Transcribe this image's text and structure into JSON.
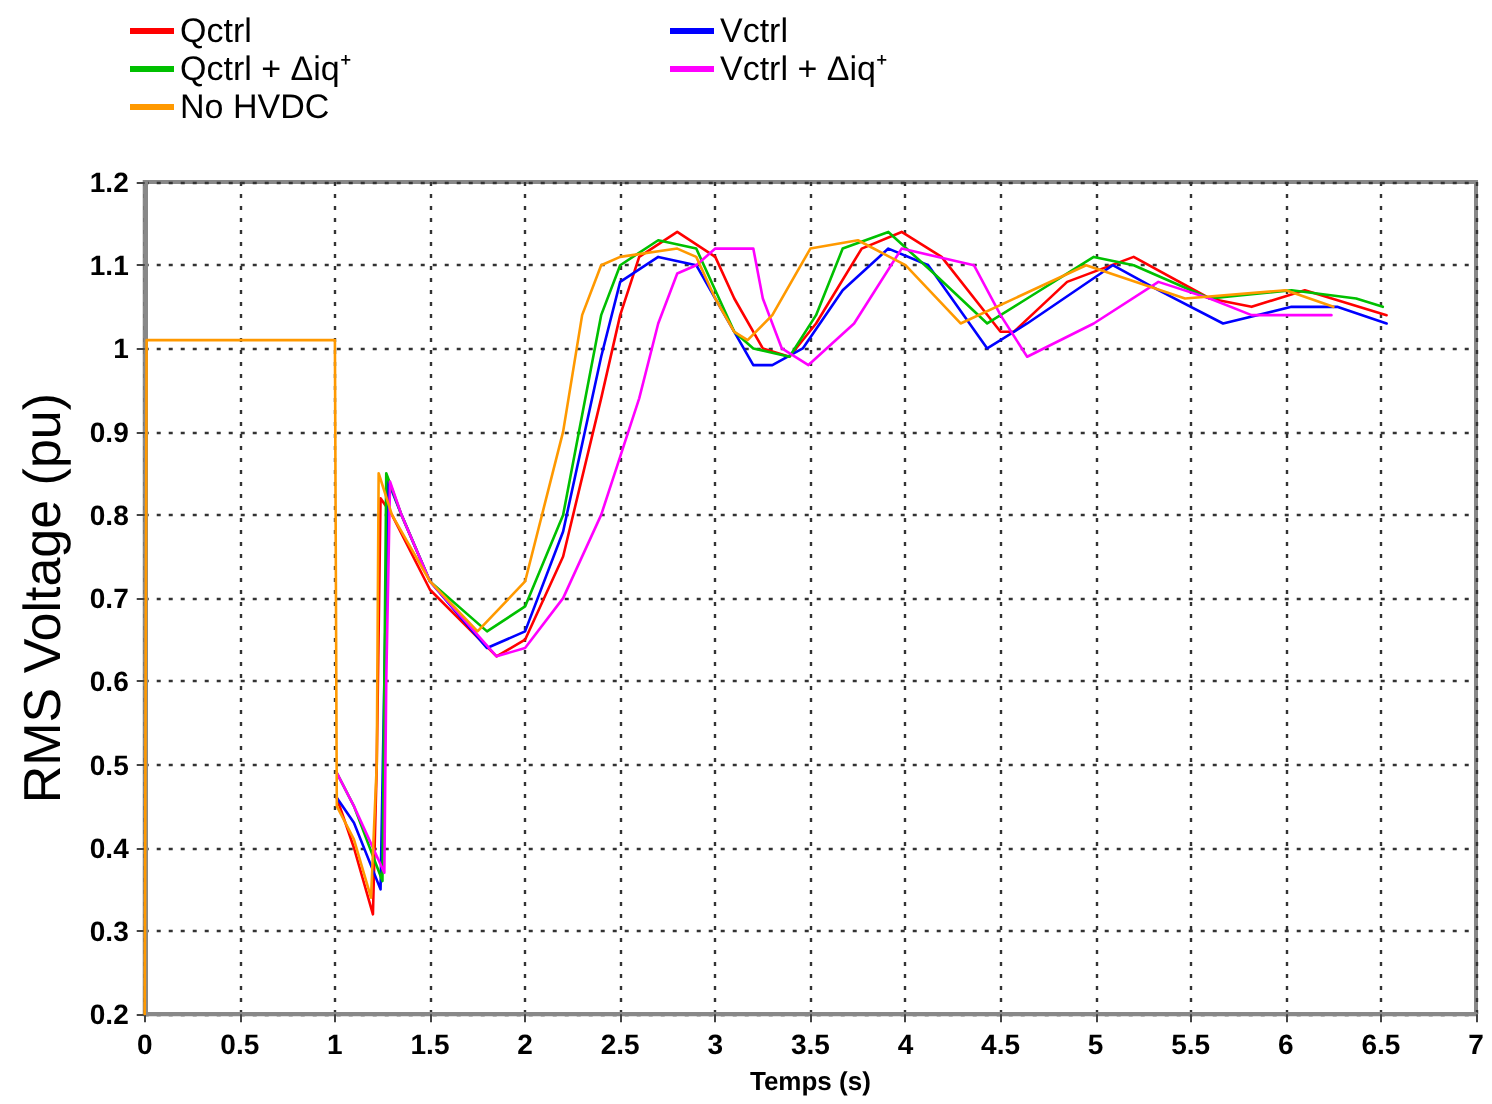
{
  "chart_data": {
    "type": "line",
    "xlabel": "Temps (s)",
    "ylabel": "RMS Voltage (pu)",
    "xlim": [
      0,
      7
    ],
    "ylim": [
      0.2,
      1.2
    ],
    "xticks": [
      0,
      0.5,
      1,
      1.5,
      2,
      2.5,
      3,
      3.5,
      4,
      4.5,
      5,
      5.5,
      6,
      6.5,
      7
    ],
    "yticks": [
      0.2,
      0.3,
      0.4,
      0.5,
      0.6,
      0.7,
      0.8,
      0.9,
      1,
      1.1,
      1.2
    ],
    "grid": true,
    "legend": "top left",
    "marker": "none",
    "line_style": "solid",
    "series": [
      {
        "name": "Qctrl",
        "color": "#ff0000",
        "x": [
          1.01,
          1.1,
          1.2,
          1.22,
          1.24,
          1.3,
          1.5,
          1.85,
          2,
          2.2,
          2.4,
          2.5,
          2.6,
          2.8,
          3,
          3.1,
          3.25,
          3.39,
          3.53,
          3.77,
          3.98,
          4.19,
          4.5,
          4.57,
          4.85,
          5.2,
          5.6,
          5.82,
          6.1,
          6.53
        ],
        "values": [
          0.46,
          0.4,
          0.32,
          0.5,
          0.82,
          0.8,
          0.71,
          0.63,
          0.65,
          0.75,
          0.94,
          1.04,
          1.11,
          1.14,
          1.11,
          1.06,
          1,
          0.99,
          1.03,
          1.12,
          1.14,
          1.11,
          1.02,
          1.02,
          1.08,
          1.11,
          1.06,
          1.05,
          1.07,
          1.04
        ]
      },
      {
        "name": "Vctrl",
        "color": "#0000ff",
        "x": [
          1.01,
          1.1,
          1.24,
          1.26,
          1.28,
          1.35,
          1.5,
          1.8,
          2,
          2.2,
          2.4,
          2.5,
          2.7,
          2.9,
          3,
          3.1,
          3.2,
          3.3,
          3.46,
          3.67,
          3.91,
          4.12,
          4.43,
          4.64,
          5.09,
          5.33,
          5.67,
          6.03,
          6.27,
          6.53
        ],
        "values": [
          0.46,
          0.43,
          0.35,
          0.6,
          0.84,
          0.8,
          0.72,
          0.64,
          0.66,
          0.78,
          0.99,
          1.08,
          1.11,
          1.1,
          1.06,
          1.02,
          0.98,
          0.98,
          1,
          1.07,
          1.12,
          1.1,
          1,
          1.03,
          1.1,
          1.07,
          1.03,
          1.05,
          1.05,
          1.03
        ]
      },
      {
        "name": "Qctrl + Δiq⁺",
        "color": "#00c000",
        "x": [
          1.01,
          1.1,
          1.25,
          1.26,
          1.27,
          1.35,
          1.5,
          1.8,
          2,
          2.2,
          2.3,
          2.4,
          2.5,
          2.7,
          2.9,
          3,
          3.1,
          3.2,
          3.39,
          3.53,
          3.67,
          3.91,
          4.15,
          4.43,
          4.64,
          4.99,
          5.2,
          5.6,
          6.03,
          6.37,
          6.51
        ],
        "values": [
          0.49,
          0.45,
          0.36,
          0.6,
          0.85,
          0.8,
          0.72,
          0.66,
          0.69,
          0.8,
          0.92,
          1.04,
          1.1,
          1.13,
          1.12,
          1.07,
          1.02,
          1,
          0.99,
          1.04,
          1.12,
          1.14,
          1.09,
          1.03,
          1.06,
          1.11,
          1.1,
          1.06,
          1.07,
          1.06,
          1.05
        ]
      },
      {
        "name": "Vctrl + Δiq⁺",
        "color": "#ff00ff",
        "x": [
          1.01,
          1.1,
          1.26,
          1.27,
          1.29,
          1.35,
          1.5,
          1.85,
          2,
          2.2,
          2.4,
          2.6,
          2.7,
          2.8,
          2.9,
          3,
          3.2,
          3.25,
          3.35,
          3.49,
          3.73,
          3.98,
          4.36,
          4.5,
          4.64,
          4.99,
          5.33,
          5.6,
          5.82,
          6.24
        ],
        "values": [
          0.49,
          0.45,
          0.37,
          0.6,
          0.84,
          0.8,
          0.72,
          0.63,
          0.64,
          0.7,
          0.8,
          0.94,
          1.03,
          1.09,
          1.1,
          1.12,
          1.12,
          1.06,
          1,
          0.98,
          1.03,
          1.12,
          1.1,
          1.04,
          0.99,
          1.03,
          1.08,
          1.06,
          1.04,
          1.04
        ]
      },
      {
        "name": "No HVDC",
        "color": "#ff9900",
        "x": [
          0,
          0.01,
          1,
          1.01,
          1.1,
          1.19,
          1.22,
          1.23,
          1.3,
          1.5,
          1.75,
          2,
          2.2,
          2.3,
          2.4,
          2.5,
          2.8,
          2.9,
          3,
          3.1,
          3.17,
          3.3,
          3.5,
          3.75,
          4,
          4.29,
          4.95,
          5.47,
          6,
          6.25
        ],
        "values": [
          0.2,
          1.01,
          1.01,
          0.45,
          0.41,
          0.34,
          0.5,
          0.85,
          0.8,
          0.72,
          0.66,
          0.72,
          0.9,
          1.04,
          1.1,
          1.11,
          1.12,
          1.11,
          1.06,
          1.02,
          1.01,
          1.04,
          1.12,
          1.13,
          1.1,
          1.03,
          1.1,
          1.06,
          1.07,
          1.05
        ]
      }
    ]
  }
}
